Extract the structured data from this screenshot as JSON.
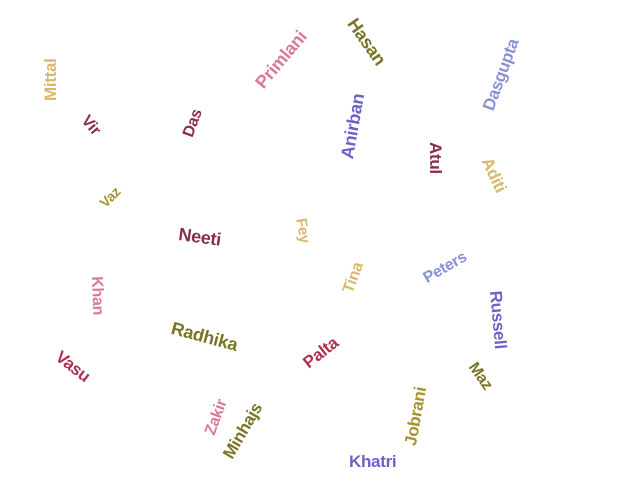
{
  "words": [
    {
      "text": "Mittal",
      "color": "#d9b86a"
    },
    {
      "text": "Vir",
      "color": "#8b2e4e"
    },
    {
      "text": "Das",
      "color": "#8b2e4e"
    },
    {
      "text": "Primlani",
      "color": "#d97a98"
    },
    {
      "text": "Hasan",
      "color": "#7a7424"
    },
    {
      "text": "Dasgupta",
      "color": "#8a92d6"
    },
    {
      "text": "Anirban",
      "color": "#6c63c9"
    },
    {
      "text": "Atul",
      "color": "#8b2e4e"
    },
    {
      "text": "Aditi",
      "color": "#d9b86a"
    },
    {
      "text": "Vaz",
      "color": "#a6922e"
    },
    {
      "text": "Neeti",
      "color": "#8b2e4e"
    },
    {
      "text": "Fey",
      "color": "#d9b86a"
    },
    {
      "text": "Tina",
      "color": "#d9b86a"
    },
    {
      "text": "Peters",
      "color": "#8a92d6"
    },
    {
      "text": "Khan",
      "color": "#d97a98"
    },
    {
      "text": "Radhika",
      "color": "#7a7424"
    },
    {
      "text": "Palta",
      "color": "#b0304f"
    },
    {
      "text": "Russell",
      "color": "#6c63c9"
    },
    {
      "text": "Vasu",
      "color": "#b0304f"
    },
    {
      "text": "Maz",
      "color": "#7a7424"
    },
    {
      "text": "Zakir",
      "color": "#d97a98"
    },
    {
      "text": "Minhajs",
      "color": "#7a7424"
    },
    {
      "text": "Jobrani",
      "color": "#a6922e"
    },
    {
      "text": "Khatri",
      "color": "#6c63c9"
    }
  ]
}
